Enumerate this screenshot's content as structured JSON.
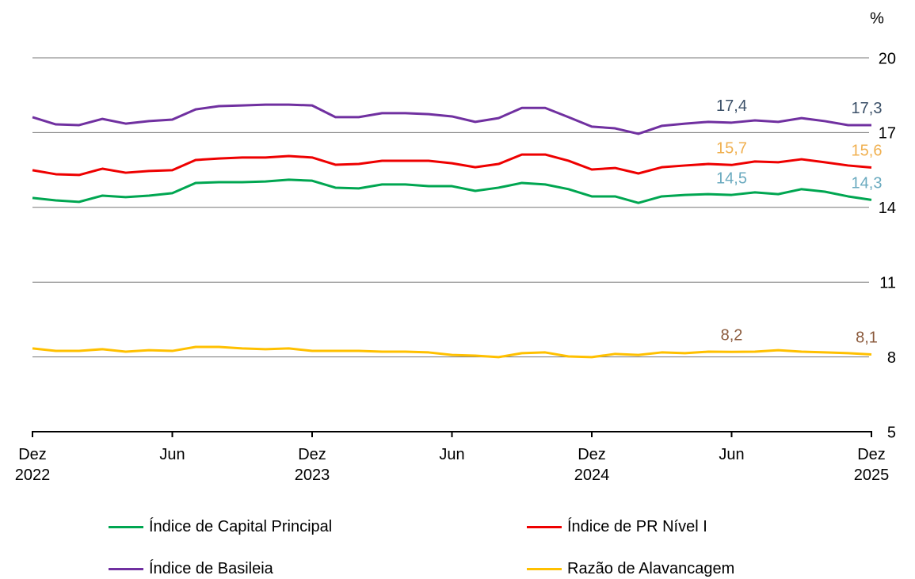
{
  "chart_data": {
    "type": "line",
    "unit": "%",
    "categories": [
      "Dez 2022",
      null,
      null,
      null,
      null,
      null,
      "Jun",
      null,
      null,
      null,
      null,
      null,
      "Dez 2023",
      null,
      null,
      null,
      null,
      null,
      "Jun",
      null,
      null,
      null,
      null,
      null,
      "Dez 2024",
      null,
      null,
      null,
      null,
      null,
      "Jun",
      null,
      null,
      null,
      null,
      null,
      "Dez 2025"
    ],
    "ylim": [
      5,
      20
    ],
    "yticks": [
      5,
      8,
      11,
      14,
      17,
      20
    ],
    "grid": true,
    "series": [
      {
        "name": "Índice de Capital Principal",
        "color": "#00a651",
        "label_color": "#6aaabf",
        "values": [
          14.38,
          14.28,
          14.22,
          14.47,
          14.41,
          14.47,
          14.57,
          14.98,
          15.01,
          15.01,
          15.04,
          15.11,
          15.07,
          14.79,
          14.76,
          14.92,
          14.92,
          14.85,
          14.85,
          14.66,
          14.79,
          14.98,
          14.92,
          14.73,
          14.44,
          14.44,
          14.18,
          14.44,
          14.5,
          14.53,
          14.5,
          14.6,
          14.53,
          14.73,
          14.63,
          14.44,
          14.3
        ],
        "value_labels": [
          null,
          null,
          null,
          null,
          null,
          null,
          null,
          null,
          null,
          null,
          null,
          null,
          null,
          null,
          null,
          null,
          null,
          null,
          null,
          null,
          null,
          null,
          null,
          null,
          null,
          null,
          null,
          null,
          null,
          null,
          "14,5",
          null,
          null,
          null,
          null,
          null,
          "14,3"
        ]
      },
      {
        "name": "Índice de PR Nível I",
        "color": "#ee0000",
        "label_color": "#f0b050",
        "values": [
          15.49,
          15.33,
          15.3,
          15.55,
          15.39,
          15.46,
          15.49,
          15.9,
          15.96,
          16.0,
          16.0,
          16.06,
          16.0,
          15.71,
          15.74,
          15.87,
          15.87,
          15.87,
          15.77,
          15.61,
          15.74,
          16.12,
          16.12,
          15.87,
          15.52,
          15.58,
          15.36,
          15.61,
          15.68,
          15.74,
          15.7,
          15.84,
          15.81,
          15.93,
          15.81,
          15.68,
          15.6
        ],
        "value_labels": [
          null,
          null,
          null,
          null,
          null,
          null,
          null,
          null,
          null,
          null,
          null,
          null,
          null,
          null,
          null,
          null,
          null,
          null,
          null,
          null,
          null,
          null,
          null,
          null,
          null,
          null,
          null,
          null,
          null,
          null,
          "15,7",
          null,
          null,
          null,
          null,
          null,
          "15,6"
        ]
      },
      {
        "name": "Índice de Basileia",
        "color": "#7030a0",
        "label_color": "#3b5068",
        "values": [
          17.62,
          17.33,
          17.3,
          17.55,
          17.36,
          17.46,
          17.52,
          17.93,
          18.06,
          18.09,
          18.12,
          18.12,
          18.09,
          17.62,
          17.62,
          17.78,
          17.78,
          17.74,
          17.65,
          17.43,
          17.58,
          17.99,
          17.99,
          17.62,
          17.24,
          17.17,
          16.95,
          17.27,
          17.36,
          17.43,
          17.4,
          17.49,
          17.43,
          17.58,
          17.46,
          17.3,
          17.3
        ],
        "value_labels": [
          null,
          null,
          null,
          null,
          null,
          null,
          null,
          null,
          null,
          null,
          null,
          null,
          null,
          null,
          null,
          null,
          null,
          null,
          null,
          null,
          null,
          null,
          null,
          null,
          null,
          null,
          null,
          null,
          null,
          null,
          "17,4",
          null,
          null,
          null,
          null,
          null,
          "17,3"
        ]
      },
      {
        "name": "Razão de Alavancagem",
        "color": "#ffc000",
        "label_color": "#8b5a3c",
        "values": [
          8.34,
          8.24,
          8.24,
          8.31,
          8.21,
          8.27,
          8.24,
          8.4,
          8.4,
          8.34,
          8.31,
          8.34,
          8.24,
          8.24,
          8.24,
          8.21,
          8.21,
          8.18,
          8.08,
          8.05,
          7.99,
          8.15,
          8.18,
          8.02,
          7.99,
          8.12,
          8.08,
          8.18,
          8.15,
          8.21,
          8.2,
          8.21,
          8.27,
          8.21,
          8.18,
          8.15,
          8.1
        ],
        "value_labels": [
          null,
          null,
          null,
          null,
          null,
          null,
          null,
          null,
          null,
          null,
          null,
          null,
          null,
          null,
          null,
          null,
          null,
          null,
          null,
          null,
          null,
          null,
          null,
          null,
          null,
          null,
          null,
          null,
          null,
          null,
          "8,2",
          null,
          null,
          null,
          null,
          null,
          "8,1"
        ]
      }
    ]
  }
}
